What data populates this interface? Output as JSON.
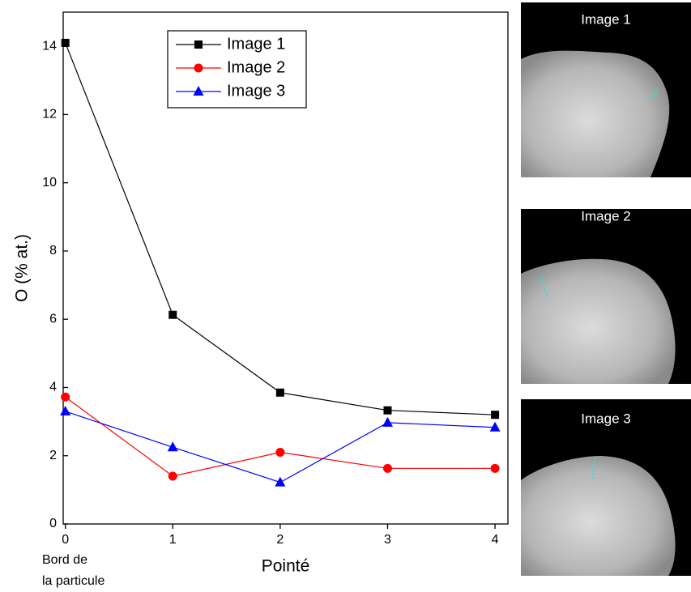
{
  "chart_data": {
    "type": "line",
    "x": [
      0,
      1,
      2,
      3,
      4
    ],
    "xlim": [
      -0.02,
      4.12
    ],
    "xticks": [
      0,
      1,
      2,
      3,
      4
    ],
    "ylim": [
      0,
      15
    ],
    "yticks": [
      0,
      2,
      4,
      6,
      8,
      10,
      12,
      14
    ],
    "xlabel": "Pointé",
    "ylabel": "O (% at.)",
    "annotation": [
      "Bord de",
      "la particule"
    ],
    "series": [
      {
        "name": "Image 1",
        "color": "#000000",
        "marker": "square",
        "values": [
          14.1,
          6.13,
          3.85,
          3.33,
          3.2
        ]
      },
      {
        "name": "Image 2",
        "color": "#ff0000",
        "marker": "circle",
        "values": [
          3.72,
          1.4,
          2.1,
          1.63,
          1.63
        ]
      },
      {
        "name": "Image 3",
        "color": "#0000ff",
        "marker": "triangle",
        "values": [
          3.3,
          2.25,
          1.22,
          2.97,
          2.83
        ]
      }
    ]
  },
  "images": [
    {
      "title": "Image 1"
    },
    {
      "title": "Image 2"
    },
    {
      "title": "Image 3"
    }
  ]
}
